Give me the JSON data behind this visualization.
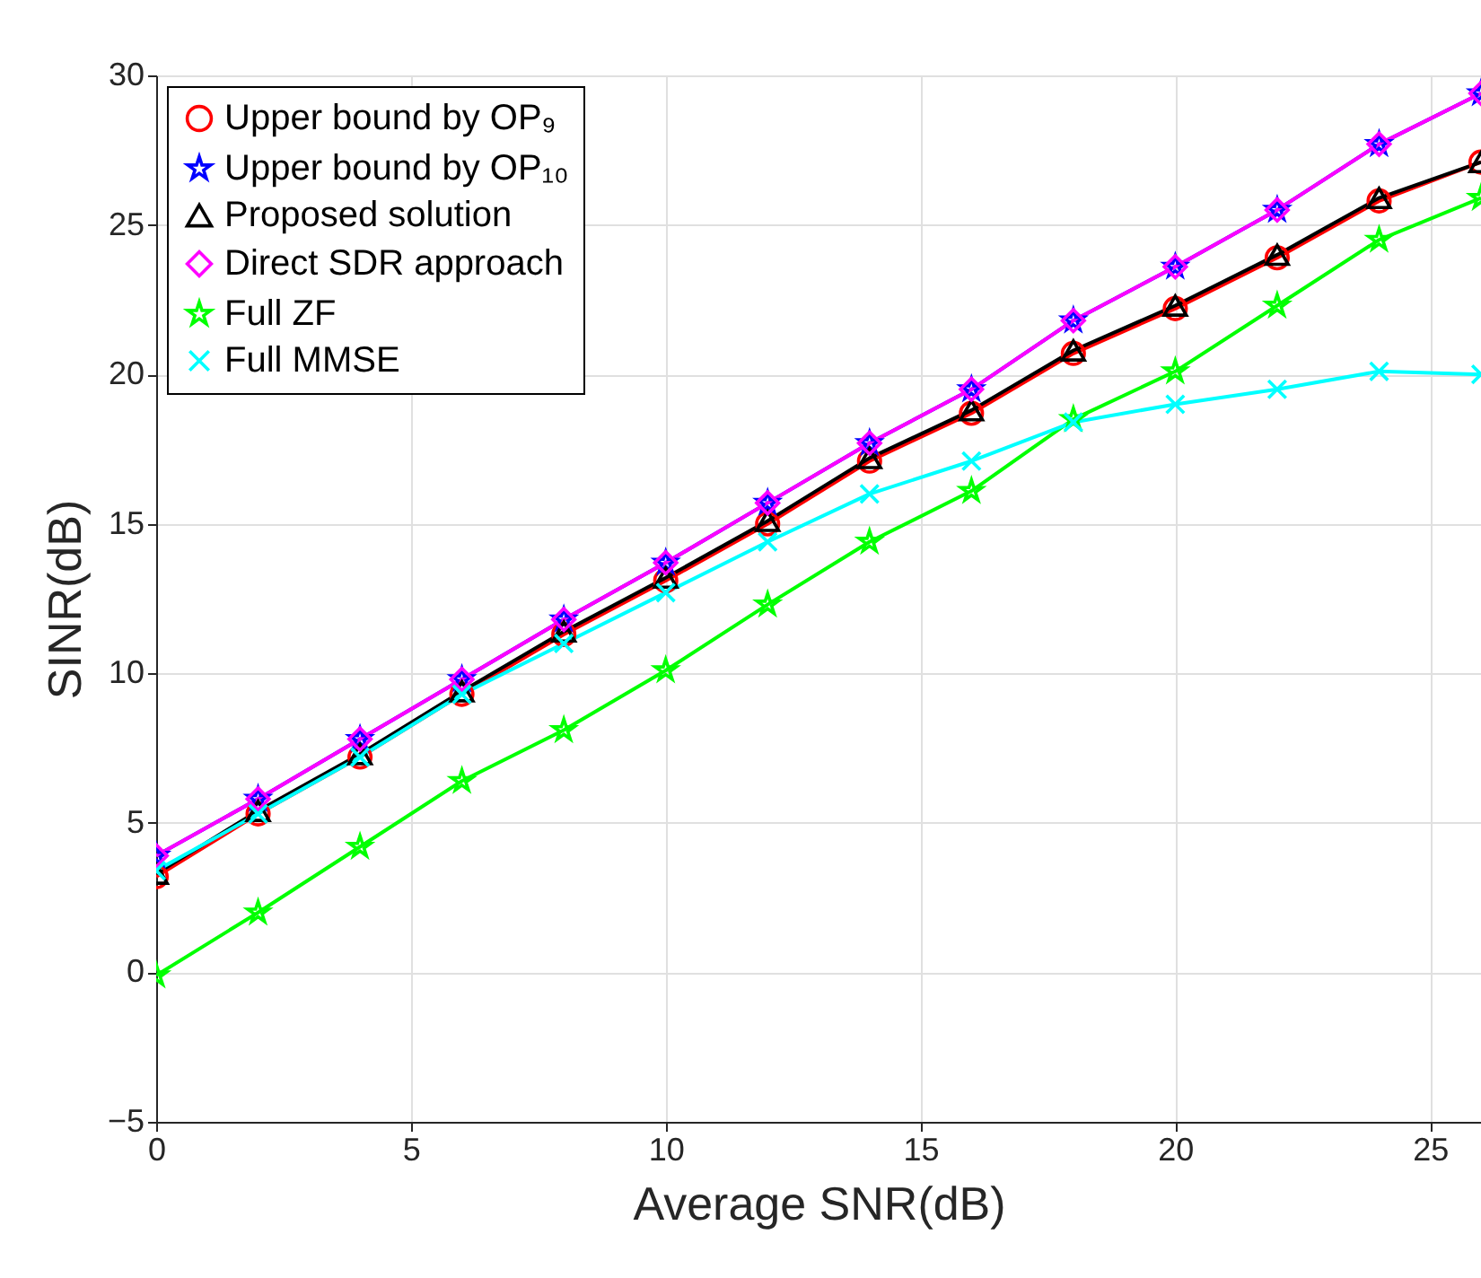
{
  "chart_data": {
    "type": "line",
    "xlabel": "Average SNR(dB)",
    "ylabel": "SINR(dB)",
    "xlim": [
      0,
      26
    ],
    "ylim": [
      -5,
      30
    ],
    "xticks": [
      0,
      5,
      10,
      15,
      20,
      25
    ],
    "yticks": [
      -5,
      0,
      5,
      10,
      15,
      20,
      25,
      30
    ],
    "grid": true,
    "legend": "top left",
    "line_style": "solid",
    "x": [
      0,
      2,
      4,
      6,
      8,
      10,
      12,
      14,
      16,
      18,
      20,
      22,
      24,
      26
    ],
    "series": [
      {
        "name": "Upper bound by OP₉",
        "color": "#ff0000",
        "marker": "circle",
        "values": [
          3.2,
          5.3,
          7.2,
          9.3,
          11.3,
          13.1,
          15.0,
          17.1,
          18.7,
          20.7,
          22.2,
          23.9,
          25.8,
          27.1
        ]
      },
      {
        "name": "Upper bound by OP₁₀",
        "color": "#0000ff",
        "marker": "star",
        "values": [
          3.9,
          5.8,
          7.8,
          9.8,
          11.8,
          13.7,
          15.7,
          17.7,
          19.5,
          21.8,
          23.6,
          25.5,
          27.7,
          29.4
        ]
      },
      {
        "name": "Proposed solution",
        "color": "#000000",
        "marker": "triangle",
        "values": [
          3.3,
          5.4,
          7.3,
          9.4,
          11.4,
          13.2,
          15.1,
          17.2,
          18.8,
          20.8,
          22.3,
          24.0,
          25.9,
          27.1
        ]
      },
      {
        "name": "Direct SDR approach",
        "color": "#ff00ff",
        "marker": "diamond",
        "values": [
          3.9,
          5.8,
          7.8,
          9.8,
          11.8,
          13.7,
          15.7,
          17.7,
          19.5,
          21.8,
          23.6,
          25.5,
          27.7,
          29.4
        ]
      },
      {
        "name": "Full ZF",
        "color": "#00ff00",
        "marker": "star",
        "values": [
          -0.1,
          2.0,
          4.2,
          6.4,
          8.1,
          10.1,
          12.3,
          14.4,
          16.1,
          18.5,
          20.1,
          22.3,
          24.5,
          25.9
        ]
      },
      {
        "name": "Full MMSE",
        "color": "#00ffff",
        "marker": "cross",
        "values": [
          3.4,
          5.3,
          7.2,
          9.3,
          11.0,
          12.7,
          14.4,
          16.0,
          17.1,
          18.4,
          19.0,
          19.5,
          20.1,
          20.0
        ]
      }
    ]
  }
}
